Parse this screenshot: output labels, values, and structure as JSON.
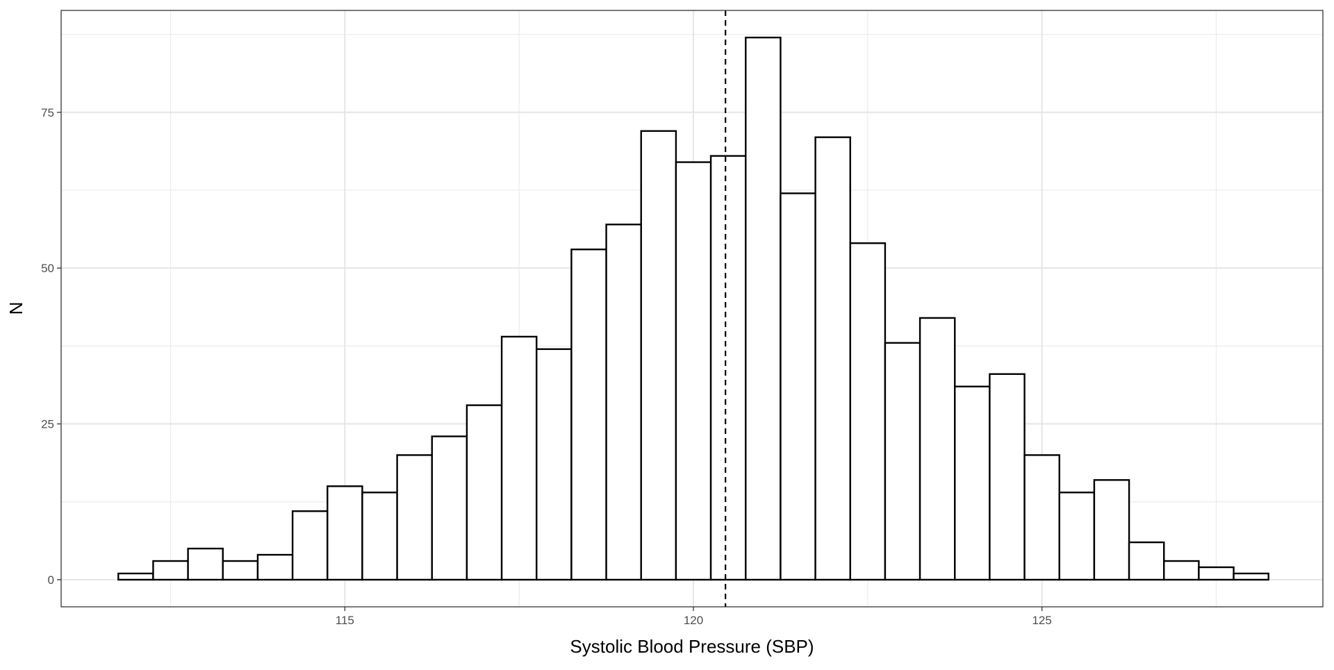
{
  "chart_data": {
    "type": "histogram",
    "x_label": "Systolic Blood Pressure (SBP)",
    "y_label": "N",
    "bins": [
      111.75,
      112.25,
      112.75,
      113.25,
      113.75,
      114.25,
      114.75,
      115.25,
      115.75,
      116.25,
      116.75,
      117.25,
      117.75,
      118.25,
      118.75,
      119.25,
      119.75,
      120.25,
      120.75,
      121.25,
      121.75,
      122.25,
      122.75,
      123.25,
      123.75,
      124.25,
      124.75,
      125.25,
      125.75,
      126.25,
      126.75,
      127.25,
      127.75,
      128.25
    ],
    "counts": [
      1,
      3,
      5,
      3,
      4,
      11,
      15,
      14,
      20,
      23,
      28,
      39,
      37,
      53,
      57,
      72,
      67,
      68,
      87,
      62,
      71,
      54,
      38,
      42,
      31,
      33,
      20,
      14,
      16,
      6,
      3,
      2,
      1
    ],
    "bar_fill": "#ffffff",
    "bar_edge": "#000000",
    "vline": 120.46,
    "xlim": [
      110.93,
      129.03
    ],
    "ylim": [
      -4.35,
      91.35
    ],
    "xticks": [
      115,
      120,
      125
    ],
    "yticks": [
      0,
      25,
      50,
      75
    ],
    "x_minor_grid": [
      112.5,
      117.5,
      122.5,
      127.5
    ],
    "y_minor_grid": [
      12.5,
      37.5,
      62.5,
      87.5
    ],
    "grid": true
  }
}
